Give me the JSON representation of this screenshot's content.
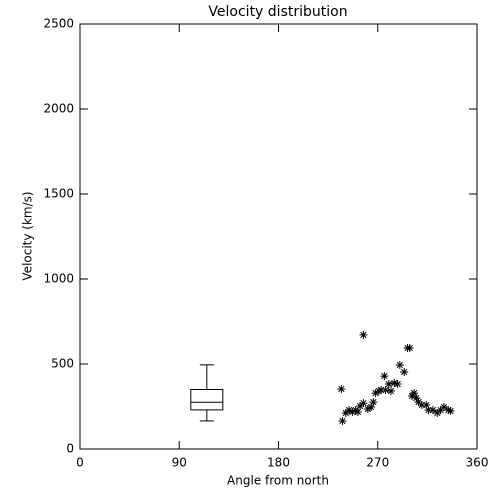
{
  "chart_data": {
    "type": "scatter",
    "title": "Velocity distribution",
    "x_label": "Angle from north",
    "y_label": "Velocity (km/s)",
    "xlim": [
      0,
      360
    ],
    "ylim": [
      0,
      2500
    ],
    "xticks": [
      0,
      90,
      180,
      270,
      360
    ],
    "yticks": [
      0,
      500,
      1000,
      1500,
      2000,
      2500
    ],
    "color": "#000000",
    "x": [
      237,
      238,
      241,
      244,
      247,
      250,
      252,
      254,
      257,
      257,
      261,
      264,
      266,
      268,
      271,
      273,
      276,
      277,
      280,
      282,
      285,
      288,
      290,
      294,
      297,
      299,
      301,
      303,
      305,
      307,
      310,
      314,
      316,
      320,
      324,
      327,
      330,
      334,
      336
    ],
    "values": [
      353,
      165,
      212,
      229,
      218,
      229,
      218,
      253,
      671,
      270,
      235,
      247,
      276,
      329,
      341,
      347,
      429,
      347,
      382,
      341,
      388,
      382,
      494,
      453,
      594,
      594,
      312,
      329,
      300,
      276,
      259,
      259,
      229,
      229,
      212,
      229,
      247,
      229,
      224
    ],
    "box": {
      "x": 115,
      "min": 165,
      "q1": 230,
      "median": 275,
      "q3": 350,
      "max": 495
    }
  }
}
